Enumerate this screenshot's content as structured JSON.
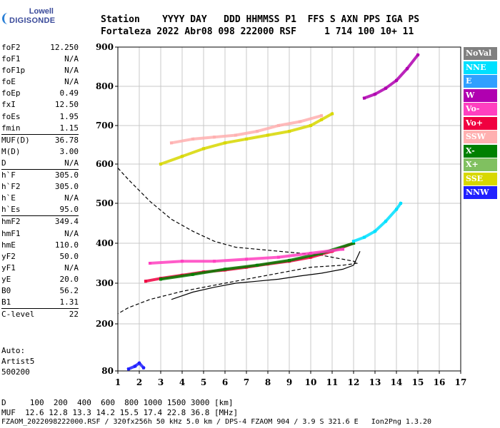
{
  "logo": {
    "top": "Lowell",
    "bottom": "DIGISONDE"
  },
  "header": {
    "line1": "Station    YYYY DAY   DDD HHMMSS P1  FFS S AXN PPS IGA PS",
    "line2": "Fortaleza 2022 Abr08 098 222000 RSF     1 714 100 10+ 11"
  },
  "params": [
    {
      "key": "foF2",
      "value": "12.250",
      "sep": false
    },
    {
      "key": "foF1",
      "value": "N/A",
      "sep": false
    },
    {
      "key": "foF1p",
      "value": "N/A",
      "sep": false
    },
    {
      "key": "foE",
      "value": "N/A",
      "sep": false
    },
    {
      "key": "foEp",
      "value": "0.49",
      "sep": false
    },
    {
      "key": "fxI",
      "value": "12.50",
      "sep": false
    },
    {
      "key": "foEs",
      "value": "1.95",
      "sep": false
    },
    {
      "key": "fmin",
      "value": "1.15",
      "sep": false
    },
    {
      "key": "MUF(D)",
      "value": "36.78",
      "sep": true
    },
    {
      "key": "M(D)",
      "value": "3.00",
      "sep": false
    },
    {
      "key": "D",
      "value": "N/A",
      "sep": false
    },
    {
      "key": "h`F",
      "value": "305.0",
      "sep": true
    },
    {
      "key": "h`F2",
      "value": "305.0",
      "sep": false
    },
    {
      "key": "h`E",
      "value": "N/A",
      "sep": false
    },
    {
      "key": "h`Es",
      "value": "95.0",
      "sep": false
    },
    {
      "key": "hmF2",
      "value": "349.4",
      "sep": true
    },
    {
      "key": "hmF1",
      "value": "N/A",
      "sep": false
    },
    {
      "key": "hmE",
      "value": "110.0",
      "sep": false
    },
    {
      "key": "yF2",
      "value": "50.0",
      "sep": false
    },
    {
      "key": "yF1",
      "value": "N/A",
      "sep": false
    },
    {
      "key": "yE",
      "value": "20.0",
      "sep": false
    },
    {
      "key": "B0",
      "value": "56.2",
      "sep": false
    },
    {
      "key": "B1",
      "value": "1.31",
      "sep": false
    },
    {
      "key": "C-level",
      "value": "22",
      "sep": true
    }
  ],
  "notes": {
    "auto": "Auto:",
    "artist": "Artist5",
    "code": "500200"
  },
  "footer": {
    "line1": "D     100  200  400  600  800 1000 1500 3000 [km]",
    "line2": "MUF  12.6 12.8 13.3 14.2 15.5 17.4 22.8 36.8 [MHz]",
    "line3": "FZAOM_2022098222000.RSF / 320fx256h 50 kHz 5.0 km / DPS-4 FZAOM 904 / 3.9 S 321.6 E   Ion2Png 1.3.20"
  },
  "legend": [
    {
      "label": "NoVal",
      "color": "#808080",
      "text": "#ffffff"
    },
    {
      "label": "NNE",
      "color": "#00e0ff",
      "text": "#ffffff"
    },
    {
      "label": "E",
      "color": "#30a0ff",
      "text": "#ffffff"
    },
    {
      "label": "W",
      "color": "#b000b0",
      "text": "#ffffff"
    },
    {
      "label": "Vo-",
      "color": "#ff40c0",
      "text": "#ffffff"
    },
    {
      "label": "Vo+",
      "color": "#f00040",
      "text": "#ffffff"
    },
    {
      "label": "SSW",
      "color": "#ffb0b0",
      "text": "#ffffff"
    },
    {
      "label": "X-",
      "color": "#008000",
      "text": "#ffffff"
    },
    {
      "label": "X+",
      "color": "#80c060",
      "text": "#ffffff"
    },
    {
      "label": "SSE",
      "color": "#d8d800",
      "text": "#ffffff"
    },
    {
      "label": "NNW",
      "color": "#2020ff",
      "text": "#ffffff"
    }
  ],
  "chart_data": {
    "type": "scatter",
    "title": "",
    "xlabel": "",
    "ylabel": "",
    "xlim": [
      1,
      17
    ],
    "ylim": [
      80,
      900
    ],
    "xticks": [
      1,
      2,
      3,
      4,
      5,
      6,
      7,
      8,
      9,
      10,
      11,
      12,
      13,
      14,
      15,
      16,
      17
    ],
    "yticks": [
      80,
      200,
      300,
      400,
      500,
      600,
      700,
      800,
      900
    ],
    "grid": true,
    "series": [
      {
        "name": "SSE",
        "color": "#d8d800",
        "x": [
          3.0,
          4.0,
          5.0,
          6.0,
          7.0,
          8.0,
          9.0,
          10.0,
          10.5,
          11.0
        ],
        "y": [
          600,
          620,
          640,
          655,
          665,
          675,
          685,
          700,
          715,
          730
        ]
      },
      {
        "name": "SSW",
        "color": "#ffb0b0",
        "x": [
          3.5,
          4.5,
          5.5,
          6.5,
          7.5,
          8.5,
          9.5,
          10.5
        ],
        "y": [
          655,
          665,
          670,
          675,
          685,
          700,
          710,
          725
        ]
      },
      {
        "name": "W",
        "color": "#b000b0",
        "x": [
          12.5,
          13.0,
          13.5,
          14.0,
          14.5,
          15.0
        ],
        "y": [
          770,
          780,
          795,
          815,
          845,
          880
        ]
      },
      {
        "name": "Vo+",
        "color": "#f00040",
        "x": [
          2.3,
          3.0,
          4.0,
          5.0,
          6.0,
          7.0,
          8.0,
          9.0,
          10.0,
          11.0,
          12.0
        ],
        "y": [
          305,
          312,
          320,
          328,
          333,
          340,
          348,
          355,
          365,
          380,
          400
        ]
      },
      {
        "name": "X-",
        "color": "#008000",
        "x": [
          3.0,
          4.5,
          6.0,
          7.5,
          9.0,
          10.5,
          12.0
        ],
        "y": [
          310,
          322,
          335,
          345,
          357,
          375,
          400
        ]
      },
      {
        "name": "Vo-",
        "color": "#ff40c0",
        "x": [
          2.5,
          4.0,
          5.5,
          7.0,
          8.5,
          10.0,
          11.5
        ],
        "y": [
          350,
          355,
          355,
          360,
          365,
          375,
          385
        ]
      },
      {
        "name": "NNE",
        "color": "#00e0ff",
        "x": [
          12.0,
          12.5,
          13.0,
          13.5,
          14.0,
          14.2
        ],
        "y": [
          405,
          415,
          430,
          455,
          485,
          500
        ]
      },
      {
        "name": "NNW",
        "color": "#2020ff",
        "x": [
          1.5,
          1.8,
          2.0,
          2.2
        ],
        "y": [
          85,
          92,
          100,
          88
        ]
      }
    ],
    "curves": [
      {
        "name": "O-trace profile (dashed)",
        "style": "dashed",
        "x": [
          1.0,
          1.5,
          2.5,
          3.5,
          4.5,
          5.5,
          6.5,
          7.5,
          8.5,
          9.5,
          10.5,
          11.0,
          11.5,
          12.0,
          12.2,
          11.5,
          10.0,
          8.0,
          6.0,
          4.0,
          2.5,
          1.5,
          1.0
        ],
        "y": [
          590,
          560,
          505,
          460,
          430,
          405,
          390,
          385,
          380,
          375,
          370,
          365,
          360,
          355,
          350,
          345,
          340,
          320,
          300,
          280,
          260,
          240,
          225
        ]
      },
      {
        "name": "Real-height profile (solid)",
        "style": "solid",
        "x": [
          3.5,
          4.5,
          5.5,
          6.5,
          7.5,
          8.5,
          9.5,
          10.5,
          11.5,
          12.0,
          12.3
        ],
        "y": [
          260,
          278,
          290,
          300,
          305,
          310,
          318,
          325,
          335,
          345,
          380
        ]
      }
    ]
  }
}
